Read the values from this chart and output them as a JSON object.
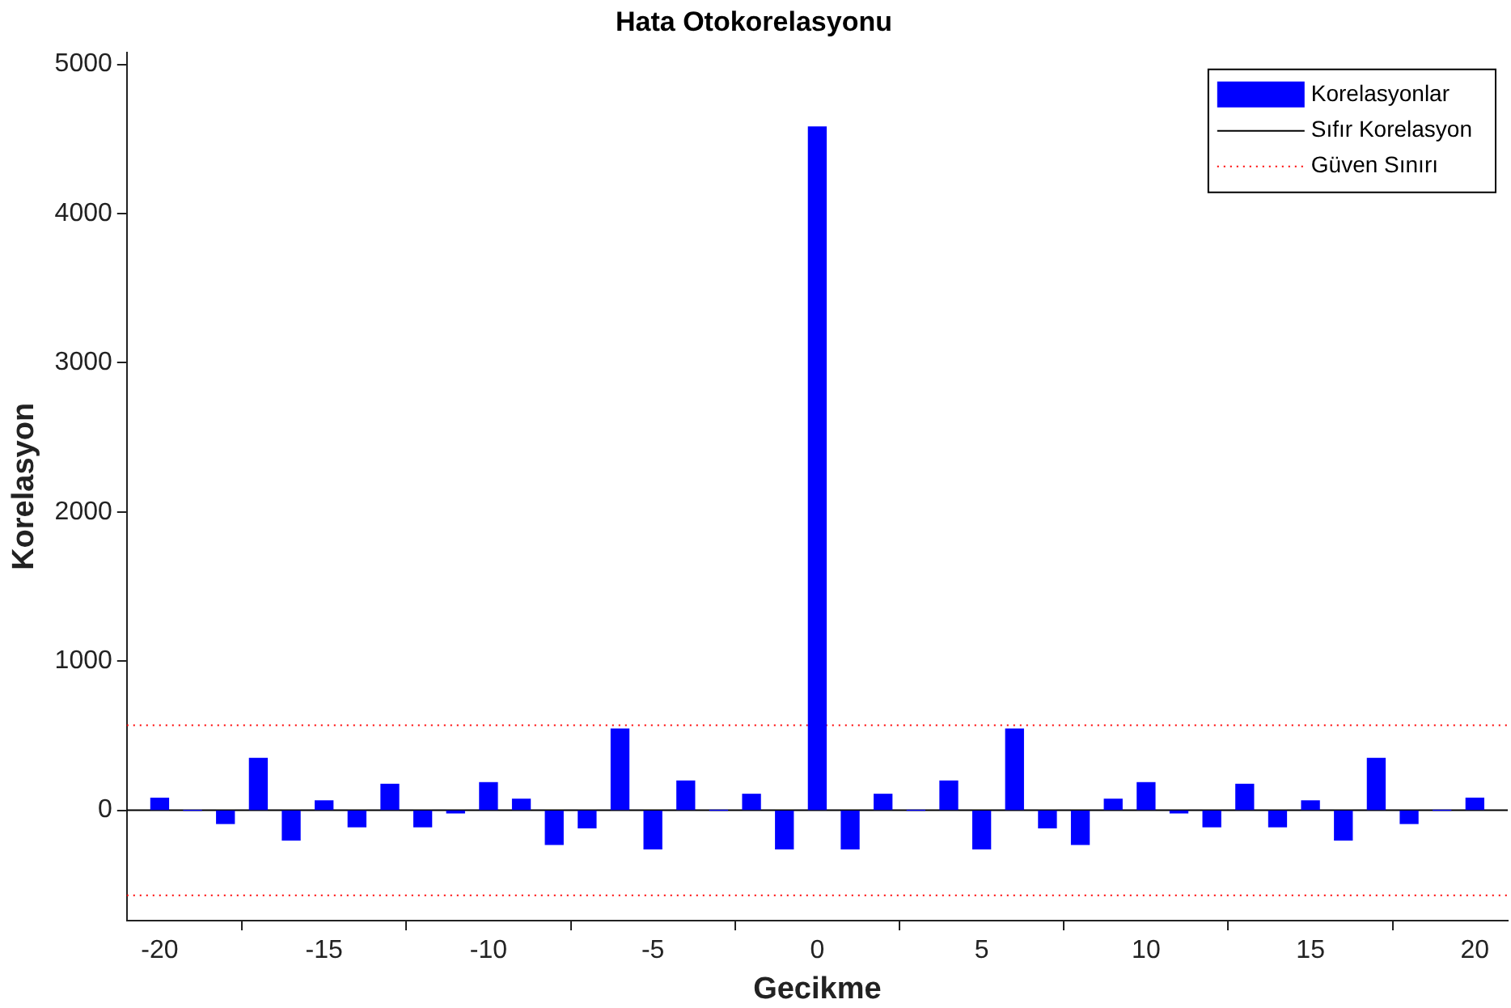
{
  "chart_data": {
    "type": "bar",
    "title": "Hata Otokorelasyonu",
    "xlabel": "Gecikme",
    "ylabel": "Korelasyon",
    "x": [
      -20,
      -19,
      -18,
      -17,
      -16,
      -15,
      -14,
      -13,
      -12,
      -11,
      -10,
      -9,
      -8,
      -7,
      -6,
      -5,
      -4,
      -3,
      -2,
      -1,
      0,
      1,
      2,
      3,
      4,
      5,
      6,
      7,
      8,
      9,
      10,
      11,
      12,
      13,
      14,
      15,
      16,
      17,
      18,
      19,
      20
    ],
    "series": [
      {
        "name": "Korelasyonlar",
        "color": "#0000ff",
        "values": [
          81,
          0,
          -89,
          348,
          -200,
          63,
          -111,
          174,
          -111,
          -18,
          185,
          74,
          -229,
          -118,
          544,
          -259,
          196,
          0,
          107,
          -259,
          4580,
          -259,
          107,
          0,
          196,
          -259,
          544,
          -118,
          -229,
          74,
          185,
          -18,
          -111,
          174,
          -111,
          63,
          -200,
          348,
          -89,
          0,
          81
        ]
      }
    ],
    "xlim": [
      -21,
      21
    ],
    "xticks": [
      -20,
      -15,
      -10,
      -5,
      0,
      5,
      10,
      15,
      20
    ],
    "ylim": [
      -740,
      5080
    ],
    "yticks": [
      0,
      1000,
      2000,
      3000,
      4000,
      5000
    ],
    "ref_lines": [
      {
        "axis": "y",
        "value": 0,
        "label": "Sıfır Korelasyon",
        "color": "#000000",
        "line_style": "solid"
      },
      {
        "axis": "y",
        "value": 570,
        "label": "Güven Sınırı",
        "color": "#ff0000",
        "line_style": "dotted"
      },
      {
        "axis": "y",
        "value": -570,
        "color": "#ff0000",
        "line_style": "dotted"
      }
    ],
    "grid": false,
    "legend": "top right"
  }
}
